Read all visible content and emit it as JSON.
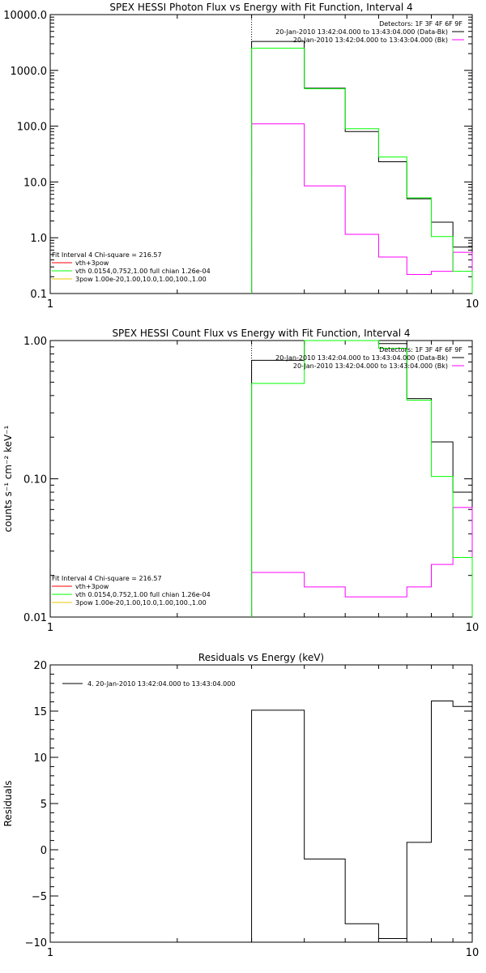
{
  "chart_data": [
    {
      "type": "line",
      "title": "SPEX HESSI Photon Flux vs Energy with Fit Function, Interval 4",
      "xscale": "log",
      "yscale": "log",
      "xlim": [
        1,
        10
      ],
      "ylim": [
        0.1,
        10000
      ],
      "x_ticks": [
        "1",
        "10"
      ],
      "y_ticks": [
        {
          "v": 0.1,
          "label": "0.1"
        },
        {
          "v": 1,
          "label": "1.0"
        },
        {
          "v": 10,
          "label": "10.0"
        },
        {
          "v": 100,
          "label": "100.0"
        },
        {
          "v": 1000,
          "label": "1000.0"
        },
        {
          "v": 10000,
          "label": "10000.0"
        }
      ],
      "vline_x": 3.0,
      "bin_edges": [
        3.0,
        4.0,
        5.0,
        6.0,
        7.0,
        8.0,
        9.0,
        10.0
      ],
      "series": [
        {
          "name": "20-Jan-2010 13:42:04.000 to 13:43:04.000 (Data-Bk)",
          "color": "#000000",
          "values": [
            3300,
            480,
            80,
            23,
            5,
            1.9,
            0.68
          ]
        },
        {
          "name": "20-Jan-2010 13:42:04.000 to 13:43:04.000 (Bk)",
          "color": "#ff00ff",
          "values": [
            110,
            8.5,
            1.15,
            0.45,
            0.22,
            0.25,
            0.55
          ]
        },
        {
          "name": "vth+3pow",
          "color": "#00ff00",
          "values": [
            2500,
            470,
            90,
            28,
            5.2,
            1.05,
            0.25
          ]
        }
      ],
      "legend_top": {
        "header": "Detectors: 1F 3F 4F 6F 9F",
        "entries": [
          0,
          1
        ],
        "position": "top-right"
      },
      "legend_bottom": {
        "header": "Fit Interval 4   Chi-square = 216.57",
        "position": "bottom-left",
        "entries": [
          {
            "label": "vth+3pow",
            "color": "#ff0000"
          },
          {
            "label": "vth 0.0154,0.752,1.00  full chian 1.26e-04",
            "color": "#00ff00"
          },
          {
            "label": "3pow 1.00e-20,1.00,10.0,1.00,100.,1.00",
            "color": "#e8c800"
          }
        ]
      }
    },
    {
      "type": "line",
      "title": "SPEX HESSI Count Flux vs Energy with Fit Function, Interval 4",
      "ylabel": "counts s⁻¹ cm⁻² keV⁻¹",
      "xscale": "log",
      "yscale": "log",
      "xlim": [
        1,
        10
      ],
      "ylim": [
        0.01,
        1.0
      ],
      "x_ticks": [
        "1",
        "10"
      ],
      "y_ticks": [
        {
          "v": 0.01,
          "label": "0.01"
        },
        {
          "v": 0.1,
          "label": "0.10"
        },
        {
          "v": 1.0,
          "label": "1.00"
        }
      ],
      "vline_x": 3.0,
      "bin_edges": [
        3.0,
        4.0,
        5.0,
        6.0,
        7.0,
        8.0,
        9.0,
        10.0
      ],
      "series": [
        {
          "name": "20-Jan-2010 13:42:04.000 to 13:43:04.000 (Data-Bk)",
          "color": "#000000",
          "values": [
            0.72,
            1.05,
            1.05,
            0.95,
            0.38,
            0.185,
            0.08
          ]
        },
        {
          "name": "20-Jan-2010 13:42:04.000 to 13:43:04.000 (Bk)",
          "color": "#ff00ff",
          "values": [
            0.021,
            0.0165,
            0.014,
            0.014,
            0.0165,
            0.024,
            0.062
          ]
        },
        {
          "name": "vth+3pow",
          "color": "#00ff00",
          "values": [
            0.49,
            1.05,
            1.05,
            0.88,
            0.37,
            0.104,
            0.027
          ]
        }
      ],
      "legend_top": {
        "header": "Detectors: 1F 3F 4F 6F 9F",
        "entries": [
          0,
          1
        ],
        "position": "top-right"
      },
      "legend_bottom": {
        "header": "Fit Interval 4   Chi-square = 216.57",
        "position": "bottom-left",
        "entries": [
          {
            "label": "vth+3pow",
            "color": "#ff0000"
          },
          {
            "label": "vth 0.0154,0.752,1.00  full chian 1.26e-04",
            "color": "#00ff00"
          },
          {
            "label": "3pow 1.00e-20,1.00,10.0,1.00,100.,1.00",
            "color": "#e8c800"
          }
        ]
      }
    },
    {
      "type": "line",
      "title": "Residuals vs Energy (keV)",
      "ylabel": "Residuals",
      "xscale": "log",
      "yscale": "linear",
      "xlim": [
        1,
        10
      ],
      "ylim": [
        -10,
        20
      ],
      "x_ticks": [
        "1",
        "10"
      ],
      "y_ticks": [
        {
          "v": -10,
          "label": "−10"
        },
        {
          "v": -5,
          "label": "−5"
        },
        {
          "v": 0,
          "label": "0"
        },
        {
          "v": 5,
          "label": "5"
        },
        {
          "v": 10,
          "label": "10"
        },
        {
          "v": 15,
          "label": "15"
        },
        {
          "v": 20,
          "label": "20"
        }
      ],
      "bin_edges": [
        3.0,
        4.0,
        5.0,
        6.0,
        7.0,
        8.0,
        9.0,
        10.0
      ],
      "series": [
        {
          "name": "4. 20-Jan-2010 13:42:04.000 to 13:43:04.000",
          "color": "#000000",
          "values": [
            15.1,
            -1.0,
            -8.0,
            -9.6,
            0.8,
            16.1,
            15.5
          ]
        }
      ],
      "legend_top": {
        "position": "top-left",
        "entries": [
          0
        ]
      }
    }
  ]
}
